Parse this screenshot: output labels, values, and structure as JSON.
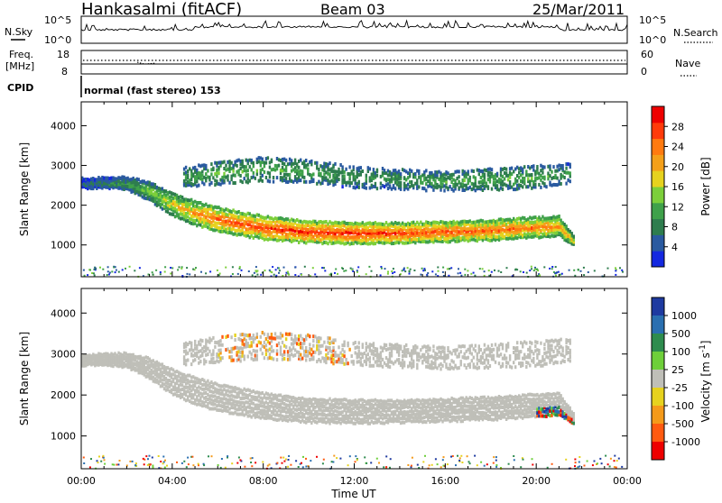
{
  "header": {
    "station": "Hankasalmi (fitACF)",
    "beam": "Beam 03",
    "date": "25/Mar/2011"
  },
  "colors": {
    "power": [
      "#1428e0",
      "#2a5aa0",
      "#2e7d4e",
      "#3fa14a",
      "#7ccf3a",
      "#e6d21e",
      "#f4a01a",
      "#ff7a10",
      "#ff3a0a",
      "#ee0000"
    ],
    "velocity_neg": [
      "#ee0000",
      "#ff5a10",
      "#f49a1a",
      "#e6d21e"
    ],
    "velocity_pos": [
      "#1e3aa0",
      "#2a6fb0",
      "#2e8c4e",
      "#6ecf3a"
    ],
    "ground_scatter": "#bfbfb8"
  },
  "top_panels": {
    "nsky_label": "N.Sky",
    "nsky_ticks": [
      "10^5",
      "10^0"
    ],
    "nsearch_label": "N.Search",
    "nsearch_ticks": [
      "10^5",
      "10^0"
    ],
    "freq_label_1": "Freq.",
    "freq_label_2": "[MHz]",
    "freq_ticks": [
      "18",
      "8"
    ],
    "nave_label": "Nave",
    "nave_ticks": [
      "60",
      "0"
    ],
    "cpid_label": "CPID",
    "cpid_text": "normal (fast stereo) 153"
  },
  "chart_data": [
    {
      "type": "heatmap",
      "title": "",
      "xlabel": "",
      "ylabel": "Slant Range [km]",
      "xlim": [
        "00:00",
        "24:00"
      ],
      "ylim": [
        200,
        4600
      ],
      "y_ticks": [
        1000,
        2000,
        3000,
        4000
      ],
      "colorbar": {
        "label": "Power [dB]",
        "ticks": [
          4,
          8,
          12,
          16,
          20,
          24,
          28
        ],
        "range": [
          0,
          32
        ]
      },
      "bands": [
        {
          "name": "",
          "t": [
            0,
            1,
            2,
            3,
            4,
            5,
            6,
            8,
            10,
            12,
            14,
            16,
            18,
            20,
            21,
            21.7
          ],
          "range": [
            2550,
            2560,
            2550,
            2350,
            2020,
            1800,
            1640,
            1430,
            1320,
            1290,
            1300,
            1330,
            1370,
            1440,
            1470,
            1090
          ],
          "width": [
            120,
            130,
            160,
            240,
            300,
            320,
            330,
            310,
            290,
            280,
            270,
            270,
            270,
            270,
            260,
            120
          ],
          "power": [
            6,
            8,
            10,
            14,
            18,
            22,
            25,
            27,
            28,
            28,
            27,
            26,
            25,
            24,
            22,
            18
          ]
        },
        {
          "name": "",
          "t": [
            4.5,
            6,
            8,
            10,
            12,
            14,
            16,
            18,
            20,
            21.5
          ],
          "range": [
            2700,
            2800,
            2900,
            2850,
            2700,
            2650,
            2600,
            2650,
            2700,
            2800
          ],
          "width": [
            250,
            300,
            320,
            300,
            280,
            260,
            260,
            280,
            300,
            260
          ],
          "power": [
            10,
            12,
            12,
            11,
            10,
            10,
            11,
            12,
            12,
            10
          ]
        }
      ]
    },
    {
      "type": "heatmap",
      "title": "",
      "xlabel": "Time UT",
      "ylabel": "Slant Range [km]",
      "xlim": [
        "00:00",
        "24:00"
      ],
      "ylim": [
        200,
        4600
      ],
      "x_ticks": [
        "00:00",
        "04:00",
        "08:00",
        "12:00",
        "16:00",
        "20:00",
        "00:00"
      ],
      "y_ticks": [
        1000,
        2000,
        3000,
        4000
      ],
      "colorbar": {
        "label": "Velocity [m s^-1]",
        "ticks": [
          1000,
          500,
          100,
          25,
          -25,
          -100,
          -500,
          -1000
        ]
      },
      "ground_scatter_range": [
        1000,
        2800
      ]
    }
  ]
}
